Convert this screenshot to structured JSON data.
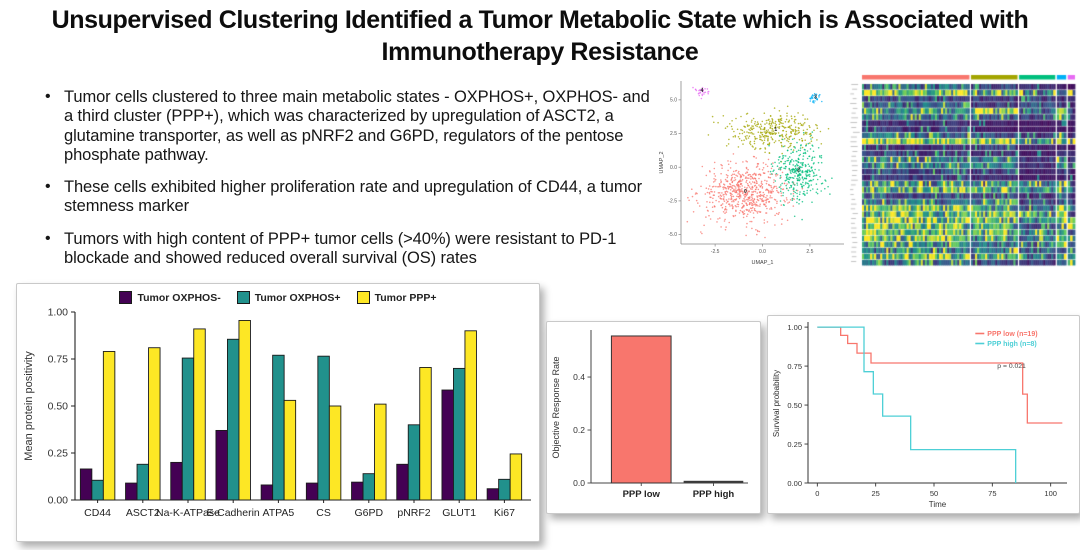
{
  "slide": {
    "title_line1": "Unsupervised Clustering Identified a Tumor Metabolic State which is Associated with",
    "title_line2": "Immunotherapy Resistance",
    "bullets": [
      "Tumor cells clustered to three main metabolic states - OXPHOS+, OXPHOS- and a third cluster (PPP+), which was characterized by upregulation of ASCT2, a glutamine transporter, as well as pNRF2 and G6PD, regulators of the pentose phosphate pathway.",
      "These cells exhibited higher proliferation rate and upregulation of CD44, a tumor stemness marker",
      "Tumors with high content of PPP+ tumor cells (>40%) were resistant to PD-1 blockade and showed reduced overall survival (OS) rates"
    ]
  },
  "colors": {
    "viridis_purple": "#440154",
    "viridis_teal": "#21918c",
    "viridis_yellow": "#FDE725",
    "ggplot_salmon": "#F8766D",
    "ggplot_cyan": "#4DCFD6",
    "ggplot_olive": "#A3A500",
    "ggplot_green": "#00BF7D",
    "ggplot_blue": "#00B0F6",
    "ggplot_magenta": "#E76BF3"
  },
  "chart_data": [
    {
      "id": "umap",
      "type": "scatter",
      "xlabel": "UMAP_1",
      "ylabel": "UMAP_2",
      "x_ticks": [
        "-2.5",
        "0.0",
        "2.5"
      ],
      "x_tick_vals": [
        -2.5,
        0.0,
        2.5
      ],
      "y_ticks": [
        "5.0",
        "2.5",
        "0.0",
        "-2.5",
        "-5.0"
      ],
      "y_tick_vals": [
        5.0,
        2.5,
        0.0,
        -2.5,
        -5.0
      ],
      "xlim": [
        -4.3,
        4.3
      ],
      "ylim": [
        -5.7,
        6.4
      ],
      "clusters": [
        {
          "label": "0",
          "color": "#F8766D",
          "n": 640,
          "cx": -0.9,
          "cy": -1.9,
          "sx": 1.9,
          "sy": 1.7
        },
        {
          "label": "1",
          "color": "#A3A500",
          "n": 340,
          "cx": 0.7,
          "cy": 2.7,
          "sx": 1.8,
          "sy": 1.1
        },
        {
          "label": "2",
          "color": "#00BF7D",
          "n": 330,
          "cx": 1.9,
          "cy": -0.3,
          "sx": 1.1,
          "sy": 1.8
        },
        {
          "label": "3",
          "color": "#00B0F6",
          "n": 30,
          "cx": 2.8,
          "cy": 5.1,
          "sx": 0.28,
          "sy": 0.3
        },
        {
          "label": "4",
          "color": "#E76BF3",
          "n": 28,
          "cx": -3.2,
          "cy": 5.6,
          "sx": 0.28,
          "sy": 0.3
        }
      ]
    },
    {
      "id": "marker-heatmap",
      "type": "heatmap",
      "legend_position": "none",
      "palette": [
        "#440154",
        "#3b528b",
        "#21918c",
        "#5ec962",
        "#fde725"
      ],
      "column_groups": [
        {
          "color": "#F8766D",
          "frac": 0.52
        },
        {
          "color": "#A3A500",
          "frac": 0.225
        },
        {
          "color": "#00BF7D",
          "frac": 0.175
        },
        {
          "color": "#00B0F6",
          "frac": 0.045
        },
        {
          "color": "#E76BF3",
          "frac": 0.035
        }
      ],
      "rows": [
        [
          0.5,
          0.35,
          0.2,
          0.15,
          0.1
        ],
        [
          0.9,
          0.8,
          0.55,
          0.4,
          0.9
        ],
        [
          0.3,
          0.25,
          0.3,
          0.2,
          0.15
        ],
        [
          0.45,
          0.3,
          0.35,
          0.3,
          0.2
        ],
        [
          0.55,
          0.9,
          0.45,
          0.85,
          0.3
        ],
        [
          0.5,
          0.45,
          0.3,
          0.9,
          0.25
        ],
        [
          0.2,
          0.15,
          0.1,
          0.1,
          0.1
        ],
        [
          0.25,
          0.1,
          0.1,
          0.15,
          0.1
        ],
        [
          0.5,
          0.35,
          0.2,
          0.7,
          0.2
        ],
        [
          0.95,
          0.9,
          0.65,
          0.8,
          0.95
        ],
        [
          0.2,
          0.3,
          0.2,
          0.15,
          0.1
        ],
        [
          0.3,
          0.2,
          0.1,
          0.2,
          0.15
        ],
        [
          0.6,
          0.45,
          0.25,
          0.6,
          0.2
        ],
        [
          0.55,
          0.55,
          0.2,
          0.5,
          0.3
        ],
        [
          0.35,
          0.25,
          0.15,
          0.3,
          0.2
        ],
        [
          0.25,
          0.2,
          0.1,
          0.2,
          0.1
        ],
        [
          0.65,
          0.55,
          0.5,
          0.85,
          0.4
        ],
        [
          0.85,
          0.75,
          0.5,
          0.9,
          0.6
        ],
        [
          0.35,
          0.3,
          0.2,
          0.3,
          0.2
        ],
        [
          0.5,
          0.65,
          0.3,
          0.45,
          0.3
        ],
        [
          0.9,
          0.7,
          0.45,
          0.9,
          0.7
        ],
        [
          0.85,
          0.9,
          0.75,
          0.85,
          0.3
        ],
        [
          0.95,
          0.8,
          0.55,
          0.9,
          0.8
        ],
        [
          0.9,
          0.75,
          0.4,
          0.5,
          0.9
        ],
        [
          0.85,
          0.85,
          0.6,
          0.9,
          0.5
        ],
        [
          0.9,
          0.6,
          0.5,
          0.85,
          0.85
        ],
        [
          0.7,
          0.55,
          0.45,
          0.9,
          0.5
        ],
        [
          0.55,
          0.5,
          0.35,
          0.5,
          0.9
        ],
        [
          0.85,
          0.7,
          0.5,
          0.6,
          0.6
        ],
        [
          0.45,
          0.35,
          0.3,
          0.4,
          0.85
        ]
      ]
    },
    {
      "id": "protein-positivity",
      "type": "bar",
      "ylabel": "Mean protein positivity",
      "xlabel": "",
      "ylim": [
        0,
        1
      ],
      "y_ticks": [
        "0.00",
        "0.25",
        "0.50",
        "0.75",
        "1.00"
      ],
      "y_tick_vals": [
        0,
        0.25,
        0.5,
        0.75,
        1.0
      ],
      "grid": false,
      "legend_position": "top",
      "categories": [
        "CD44",
        "ASCT2",
        "Na-K-ATPase",
        "E-Cadherin",
        "ATPA5",
        "CS",
        "G6PD",
        "pNRF2",
        "GLUT1",
        "Ki67"
      ],
      "series": [
        {
          "name": "Tumor OXPHOS-",
          "color": "#440154",
          "values": [
            0.165,
            0.09,
            0.2,
            0.37,
            0.08,
            0.09,
            0.095,
            0.19,
            0.585,
            0.06
          ]
        },
        {
          "name": "Tumor OXPHOS+",
          "color": "#21918c",
          "values": [
            0.105,
            0.19,
            0.755,
            0.855,
            0.77,
            0.765,
            0.14,
            0.4,
            0.7,
            0.11
          ]
        },
        {
          "name": "Tumor PPP+",
          "color": "#FDE725",
          "values": [
            0.79,
            0.81,
            0.91,
            0.955,
            0.53,
            0.5,
            0.51,
            0.705,
            0.9,
            0.245
          ]
        }
      ]
    },
    {
      "id": "objective-response-rate",
      "type": "bar",
      "ylabel": "Objective Response Rate",
      "xlabel": "",
      "ylim": [
        0,
        0.57
      ],
      "y_ticks": [
        "0.0",
        "0.2",
        "0.4"
      ],
      "y_tick_vals": [
        0.0,
        0.2,
        0.4
      ],
      "grid": false,
      "categories": [
        "PPP low",
        "PPP high"
      ],
      "values": [
        0.555,
        0.002
      ],
      "bar_color": "#F8766D"
    },
    {
      "id": "overall-survival",
      "type": "line",
      "subtype": "kaplan-meier-step",
      "xlabel": "Time",
      "ylabel": "Survival probability",
      "x_ticks": [
        "0",
        "25",
        "50",
        "75",
        "100"
      ],
      "x_tick_vals": [
        0,
        25,
        50,
        75,
        100
      ],
      "y_ticks": [
        "0.00",
        "0.25",
        "0.50",
        "0.75",
        "1.00"
      ],
      "y_tick_vals": [
        0,
        0.25,
        0.5,
        0.75,
        1.0
      ],
      "xlim": [
        -4,
        107
      ],
      "ylim": [
        0,
        1.02
      ],
      "grid": false,
      "legend_position": "top-right",
      "p_value": "p = 0.021",
      "series": [
        {
          "name": "PPP low (n=19)",
          "color": "#F8766D",
          "points": [
            [
              0,
              1.0
            ],
            [
              10,
              0.947
            ],
            [
              13,
              0.895
            ],
            [
              17,
              0.833
            ],
            [
              23,
              0.77
            ],
            [
              88,
              0.57
            ],
            [
              90,
              0.385
            ],
            [
              105,
              0.385
            ]
          ]
        },
        {
          "name": "PPP high (n=8)",
          "color": "#4DCFD6",
          "points": [
            [
              0,
              1.0
            ],
            [
              20,
              0.714
            ],
            [
              24,
              0.571
            ],
            [
              28,
              0.429
            ],
            [
              40,
              0.214
            ],
            [
              85,
              0.0
            ]
          ]
        }
      ]
    }
  ]
}
